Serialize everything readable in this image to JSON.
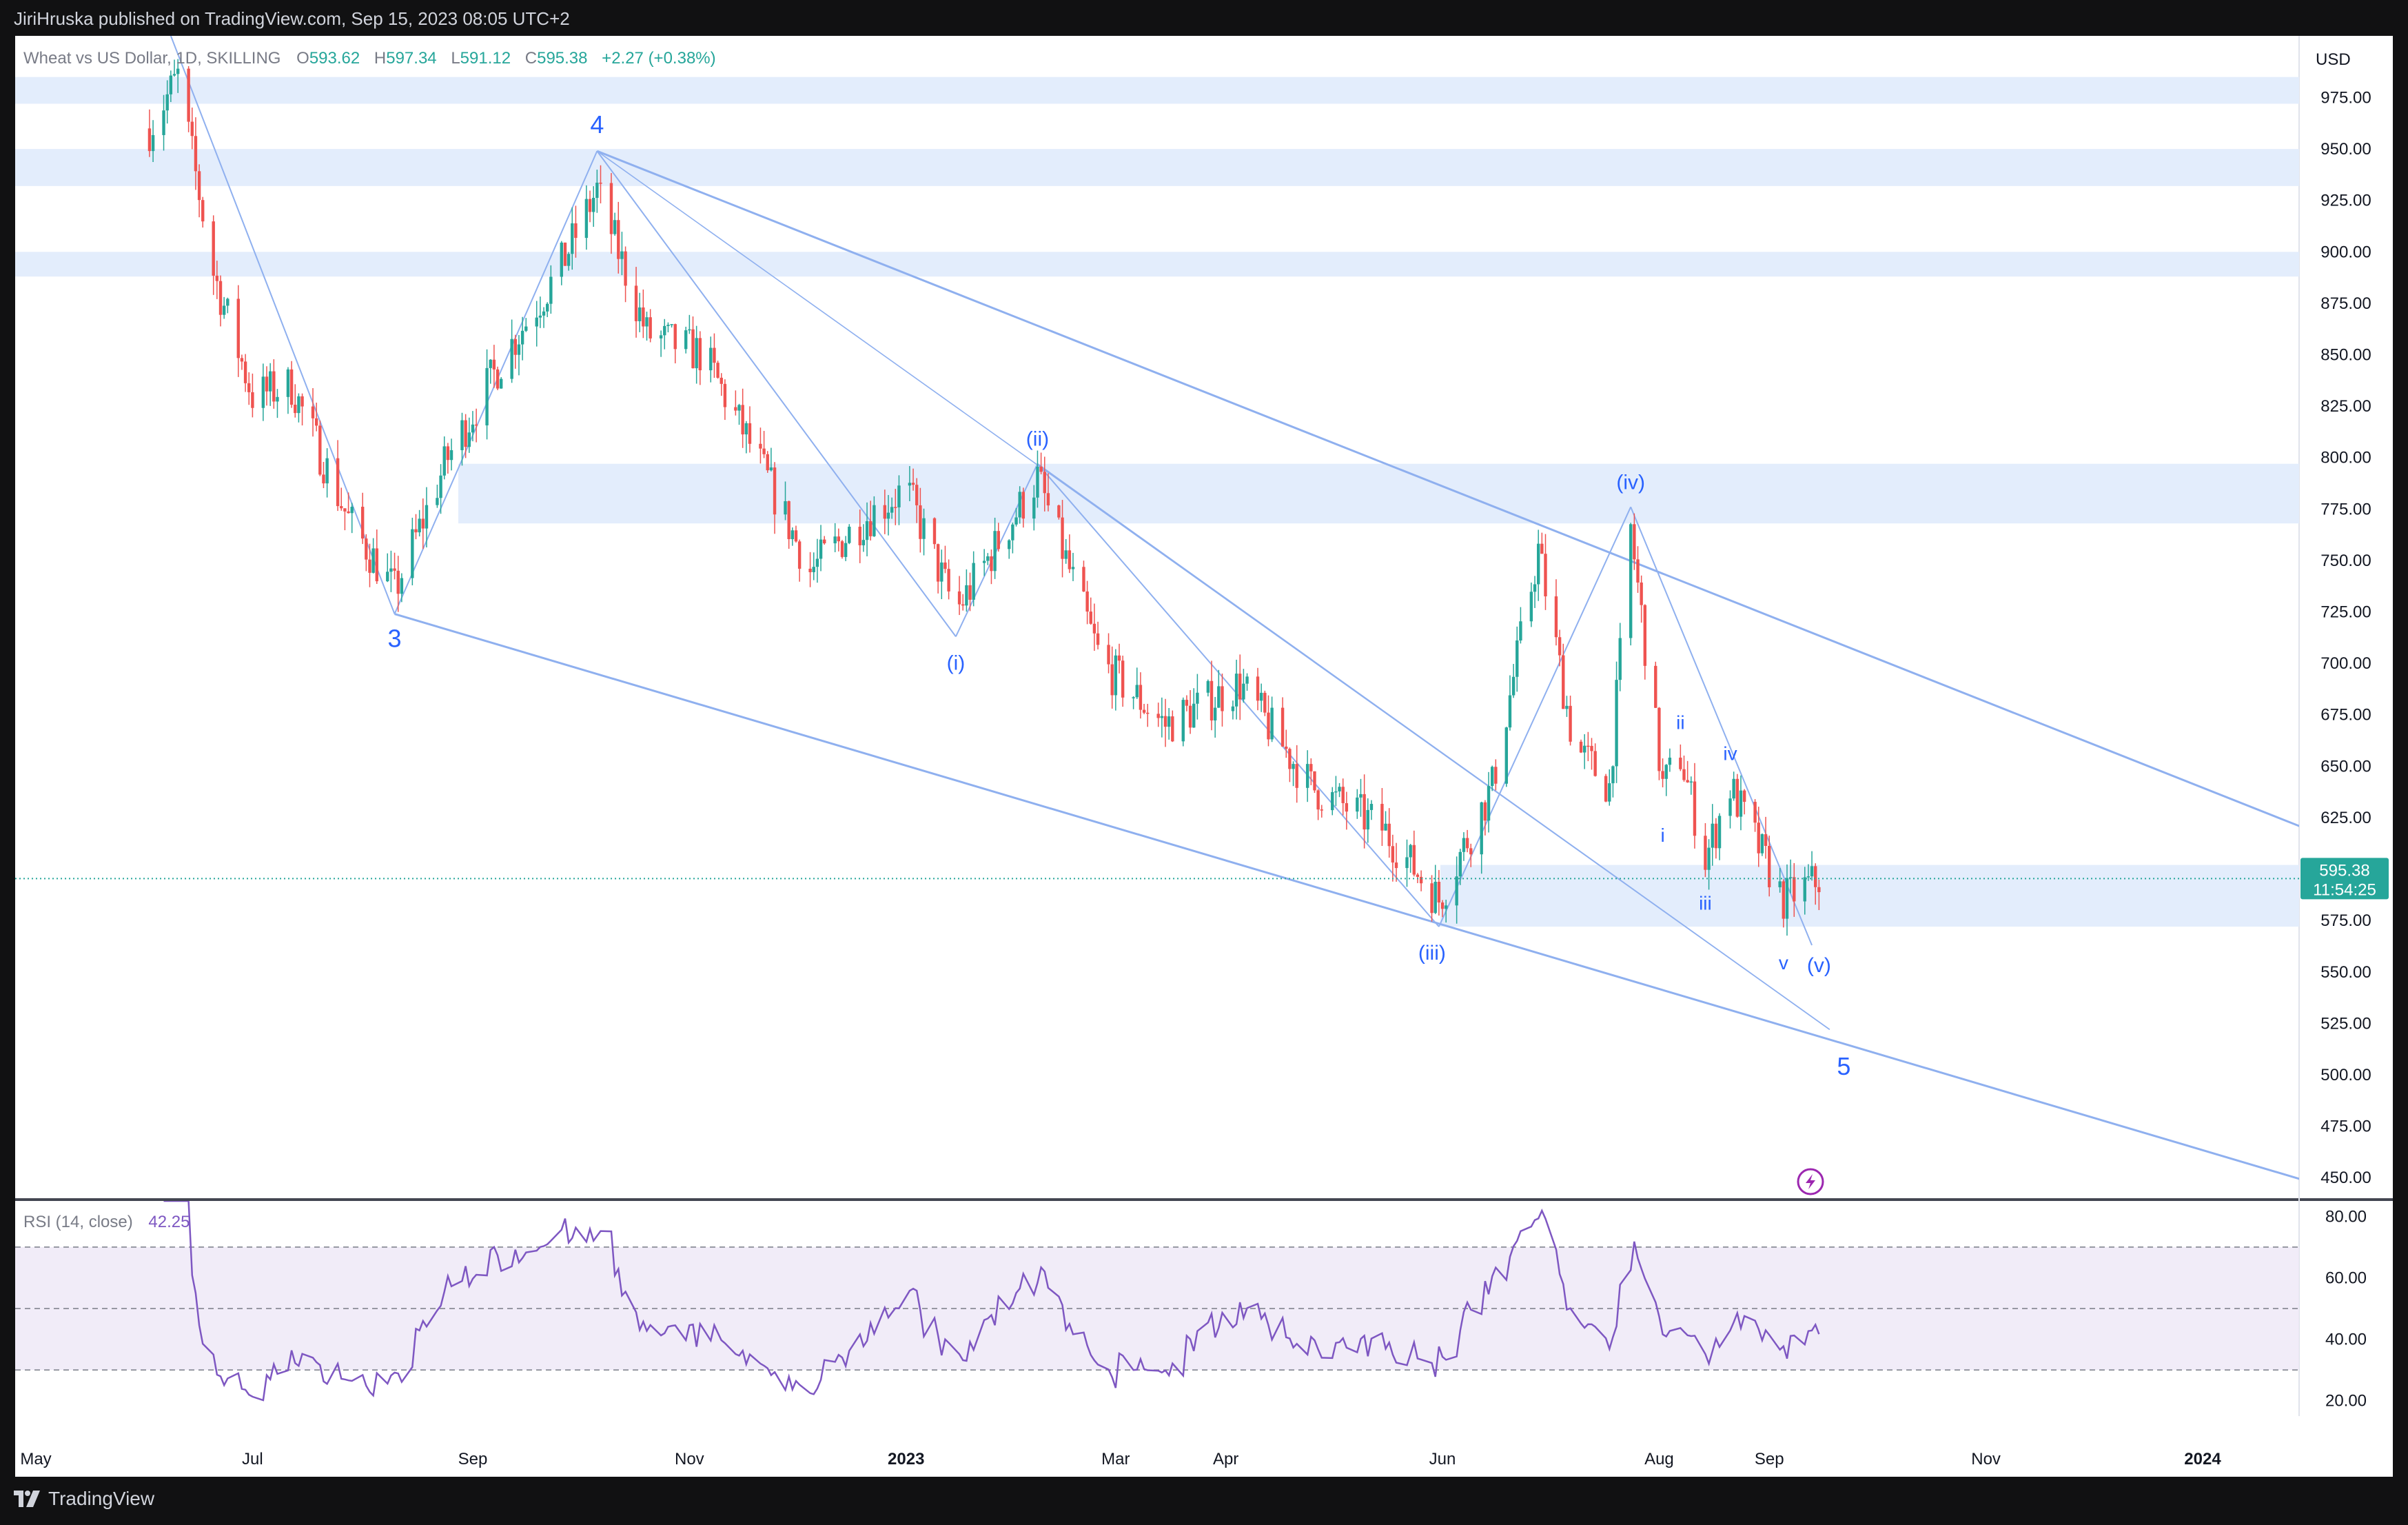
{
  "header": {
    "publisher": "JiriHruska published on TradingView.com, Sep 15, 2023 08:05 UTC+2"
  },
  "legend": {
    "symbol": "Wheat vs US Dollar, 1D, SKILLING",
    "open_label": "O",
    "open": "593.62",
    "high_label": "H",
    "high": "597.34",
    "low_label": "L",
    "low": "591.12",
    "close_label": "C",
    "close": "595.38",
    "change": "+2.27 (+0.38%)"
  },
  "price_axis": {
    "currency": "USD",
    "ticks": [
      "975.00",
      "950.00",
      "925.00",
      "900.00",
      "875.00",
      "850.00",
      "825.00",
      "800.00",
      "775.00",
      "750.00",
      "725.00",
      "700.00",
      "675.00",
      "650.00",
      "625.00",
      "575.00",
      "550.00",
      "525.00",
      "500.00",
      "475.00",
      "450.00"
    ],
    "last_price": "595.38",
    "countdown": "11:54:25"
  },
  "rsi": {
    "label": "RSI (14, close)",
    "value": "42.25",
    "ticks": [
      "80.00",
      "60.00",
      "40.00",
      "20.00"
    ]
  },
  "time_axis": {
    "labels": [
      {
        "text": "May",
        "bold": false
      },
      {
        "text": "Jul",
        "bold": false
      },
      {
        "text": "Sep",
        "bold": false
      },
      {
        "text": "Nov",
        "bold": false
      },
      {
        "text": "2023",
        "bold": true
      },
      {
        "text": "Mar",
        "bold": false
      },
      {
        "text": "Apr",
        "bold": false
      },
      {
        "text": "Jun",
        "bold": false
      },
      {
        "text": "Aug",
        "bold": false
      },
      {
        "text": "Sep",
        "bold": false
      },
      {
        "text": "Nov",
        "bold": false
      },
      {
        "text": "2024",
        "bold": true
      }
    ]
  },
  "wave_labels": [
    "3",
    "4",
    "5",
    "(i)",
    "(ii)",
    "(iii)",
    "(iv)",
    "(v)",
    "i",
    "ii",
    "iii",
    "iv",
    "v"
  ],
  "footer": {
    "brand": "TradingView"
  },
  "colors": {
    "up": "#26a69a",
    "down": "#ef5350",
    "wave_line": "#8fb0ef",
    "zone": "#e3edfc",
    "rsi_line": "#7e57c2",
    "rsi_band": "#ede7f6",
    "label": "#2962ff",
    "price_tag": "#26a69a"
  },
  "chart_data": {
    "type": "candlestick",
    "title": "Wheat vs US Dollar, 1D, SKILLING",
    "y_price_range": [
      440,
      1005
    ],
    "rsi_range": [
      15,
      85
    ],
    "rsi_levels": [
      70,
      50,
      30
    ],
    "resistance_zones": [
      [
        972,
        985
      ],
      [
        932,
        950
      ],
      [
        888,
        900
      ],
      [
        768,
        797
      ],
      [
        572,
        602
      ]
    ],
    "wave_points": [
      {
        "label": "3",
        "date": "2022-08-10",
        "price": 724
      },
      {
        "label": "4",
        "date": "2022-10-06",
        "price": 949
      },
      {
        "label": "(i)",
        "date": "2023-01-15",
        "price": 713
      },
      {
        "label": "(ii)",
        "date": "2023-02-07",
        "price": 797
      },
      {
        "label": "(iii)",
        "date": "2023-05-31",
        "price": 572
      },
      {
        "label": "(iv)",
        "date": "2023-07-24",
        "price": 776
      },
      {
        "label": "i",
        "date": "2023-08-02",
        "price": 630
      },
      {
        "label": "ii",
        "date": "2023-08-07",
        "price": 660
      },
      {
        "label": "iii",
        "date": "2023-08-14",
        "price": 597
      },
      {
        "label": "iv",
        "date": "2023-08-21",
        "price": 645
      },
      {
        "label": "v",
        "date": "2023-09-05",
        "price": 568
      }
    ],
    "channel_lines": [
      {
        "from": {
          "date": "2022-10-06",
          "price": 949
        },
        "to": {
          "date": "2024-01-31",
          "price": 619
        }
      },
      {
        "from": {
          "date": "2022-08-10",
          "price": 724
        },
        "to": {
          "date": "2024-01-31",
          "price": 448
        }
      }
    ],
    "last_close": 595.38,
    "rsi_last": 42.25
  }
}
